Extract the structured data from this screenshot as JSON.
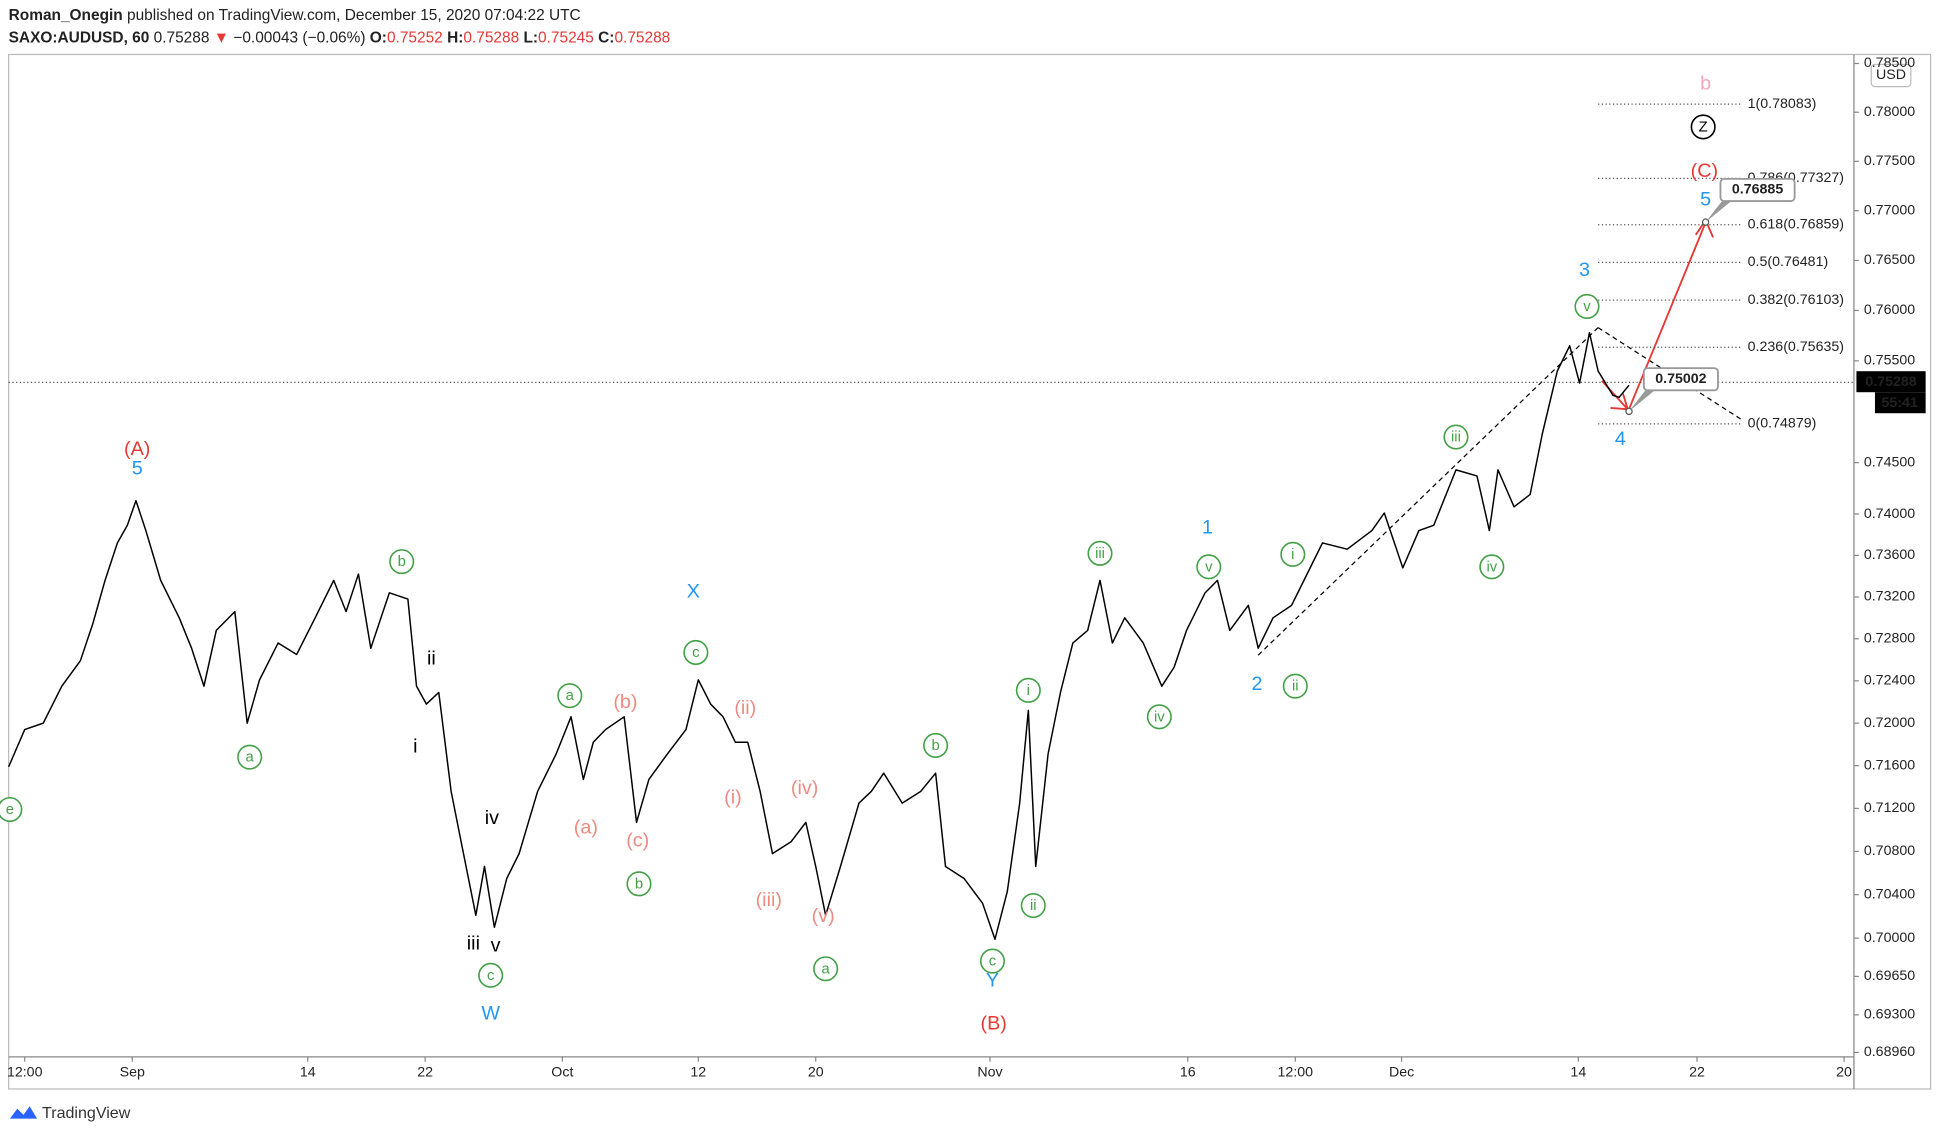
{
  "header": {
    "author": "Roman_Onegin",
    "published": "published on TradingView.com, December 15, 2020 07:04:22 UTC",
    "symbol": "SAXO:AUDUSD, 60",
    "last": "0.75288",
    "arrow": "▼",
    "change": "−0.00043 (−0.06%)",
    "ohlc": [
      {
        "key": "O:",
        "value": "0.75252"
      },
      {
        "key": "H:",
        "value": "0.75288"
      },
      {
        "key": "L:",
        "value": "0.75245"
      },
      {
        "key": "C:",
        "value": "0.75288"
      }
    ]
  },
  "footer": "TradingView",
  "chart_data": {
    "type": "line",
    "color": "#000000",
    "log_scale": true,
    "grid": false,
    "currency": "USD",
    "last_price": 0.75288,
    "countdown": "55:41",
    "xlim": [
      7,
      1500
    ],
    "xticks": [
      {
        "value": 20,
        "label": "12:00"
      },
      {
        "value": 107,
        "label": "Sep"
      },
      {
        "value": 249,
        "label": "14"
      },
      {
        "value": 344,
        "label": "22"
      },
      {
        "value": 455,
        "label": "Oct"
      },
      {
        "value": 565,
        "label": "12"
      },
      {
        "value": 660,
        "label": "20"
      },
      {
        "value": 801,
        "label": "Nov"
      },
      {
        "value": 961,
        "label": "16"
      },
      {
        "value": 1048,
        "label": "12:00"
      },
      {
        "value": 1134,
        "label": "Dec"
      },
      {
        "value": 1277,
        "label": "14"
      },
      {
        "value": 1373,
        "label": "22"
      },
      {
        "value": 1492,
        "label": "20"
      }
    ],
    "ylim": [
      0.6892,
      0.7858
    ],
    "yticks": [
      {
        "value": 0.785,
        "label": "0.78500"
      },
      {
        "value": 0.78,
        "label": "0.78000"
      },
      {
        "value": 0.775,
        "label": "0.77500"
      },
      {
        "value": 0.77,
        "label": "0.77000"
      },
      {
        "value": 0.765,
        "label": "0.76500"
      },
      {
        "value": 0.76,
        "label": "0.76000"
      },
      {
        "value": 0.755,
        "label": "0.75500"
      },
      {
        "value": 0.745,
        "label": "0.74500"
      },
      {
        "value": 0.74,
        "label": "0.74000"
      },
      {
        "value": 0.736,
        "label": "0.73600"
      },
      {
        "value": 0.732,
        "label": "0.73200"
      },
      {
        "value": 0.728,
        "label": "0.72800"
      },
      {
        "value": 0.724,
        "label": "0.72400"
      },
      {
        "value": 0.72,
        "label": "0.72000"
      },
      {
        "value": 0.716,
        "label": "0.71600"
      },
      {
        "value": 0.712,
        "label": "0.71200"
      },
      {
        "value": 0.708,
        "label": "0.70800"
      },
      {
        "value": 0.704,
        "label": "0.70400"
      },
      {
        "value": 0.7,
        "label": "0.70000"
      },
      {
        "value": 0.6965,
        "label": "0.69650"
      },
      {
        "value": 0.693,
        "label": "0.69300"
      },
      {
        "value": 0.6896,
        "label": "0.68960"
      }
    ],
    "x": [
      7,
      20,
      35,
      50,
      65,
      75,
      85,
      95,
      103,
      110,
      118,
      130,
      145,
      155,
      165,
      175,
      190,
      200,
      210,
      225,
      240,
      255,
      270,
      280,
      290,
      300,
      315,
      330,
      337,
      345,
      355,
      365,
      375,
      385,
      392,
      400,
      410,
      420,
      435,
      450,
      462,
      472,
      480,
      490,
      505,
      515,
      525,
      540,
      555,
      565,
      575,
      585,
      595,
      605,
      615,
      625,
      640,
      652,
      660,
      668,
      680,
      695,
      705,
      715,
      730,
      745,
      757,
      765,
      780,
      795,
      805,
      815,
      825,
      832,
      838,
      848,
      858,
      868,
      880,
      890,
      900,
      910,
      925,
      940,
      950,
      960,
      975,
      985,
      995,
      1010,
      1018,
      1030,
      1045,
      1060,
      1070,
      1090,
      1110,
      1120,
      1135,
      1148,
      1160,
      1178,
      1195,
      1205,
      1212,
      1225,
      1238,
      1248,
      1260,
      1270,
      1278,
      1286,
      1293,
      1305,
      1310,
      1318
    ],
    "values": [
      0.7159,
      0.7194,
      0.72,
      0.7235,
      0.7259,
      0.7294,
      0.7336,
      0.7372,
      0.7389,
      0.7413,
      0.7384,
      0.7336,
      0.73,
      0.7271,
      0.7235,
      0.7288,
      0.7306,
      0.72,
      0.7241,
      0.7276,
      0.7265,
      0.73,
      0.7336,
      0.7306,
      0.7342,
      0.7271,
      0.7324,
      0.7318,
      0.7235,
      0.7218,
      0.7229,
      0.7136,
      0.7078,
      0.7021,
      0.7066,
      0.701,
      0.7055,
      0.7078,
      0.7136,
      0.7171,
      0.7206,
      0.7147,
      0.7182,
      0.7194,
      0.7206,
      0.7107,
      0.7147,
      0.7171,
      0.7194,
      0.7241,
      0.7218,
      0.7206,
      0.7182,
      0.7182,
      0.7136,
      0.7078,
      0.7089,
      0.7107,
      0.7066,
      0.7021,
      0.7066,
      0.7125,
      0.7136,
      0.7153,
      0.7125,
      0.7136,
      0.7153,
      0.7066,
      0.7055,
      0.7032,
      0.6999,
      0.7043,
      0.7125,
      0.7212,
      0.7066,
      0.7171,
      0.7229,
      0.7276,
      0.7288,
      0.7336,
      0.7276,
      0.73,
      0.7276,
      0.7235,
      0.7253,
      0.7288,
      0.7324,
      0.7336,
      0.7288,
      0.7312,
      0.7271,
      0.73,
      0.7312,
      0.7348,
      0.7372,
      0.7366,
      0.7384,
      0.7401,
      0.7348,
      0.7384,
      0.7389,
      0.7443,
      0.7437,
      0.7384,
      0.7443,
      0.7407,
      0.7419,
      0.7479,
      0.754,
      0.7565,
      0.7528,
      0.7578,
      0.754,
      0.7516,
      0.7514,
      0.7526
    ],
    "fib_levels": [
      {
        "value": 0.78083,
        "label": "1(0.78083)"
      },
      {
        "value": 0.77327,
        "label": "0.786(0.77327)"
      },
      {
        "value": 0.76859,
        "label": "0.618(0.76859)"
      },
      {
        "value": 0.76481,
        "label": "0.5(0.76481)"
      },
      {
        "value": 0.76103,
        "label": "0.382(0.76103)"
      },
      {
        "value": 0.75635,
        "label": "0.236(0.75635)"
      },
      {
        "value": 0.74879,
        "label": "0(0.74879)"
      }
    ],
    "projections": [
      {
        "x": 1318,
        "value": 0.75002
      },
      {
        "x": 1380,
        "value": 0.76885
      }
    ],
    "annotations": [
      {
        "text": "(A)",
        "x": 111,
        "y": 0.7463,
        "color": "#e53935",
        "circled": false
      },
      {
        "text": "(B)",
        "x": 804,
        "y": 0.6922,
        "color": "#e53935",
        "circled": false
      },
      {
        "text": "(C)",
        "x": 1379,
        "y": 0.774,
        "color": "#e53935",
        "circled": false
      },
      {
        "text": "b",
        "x": 1380,
        "y": 0.7829,
        "color": "#f4a7b9",
        "circled": false
      },
      {
        "text": "Z",
        "x": 1378,
        "y": 0.7785,
        "color": "#000000",
        "circled": true
      },
      {
        "text": "5",
        "x": 111,
        "y": 0.7444,
        "color": "#2196f3",
        "circled": false
      },
      {
        "text": "W",
        "x": 397,
        "y": 0.6931,
        "color": "#2196f3",
        "circled": false
      },
      {
        "text": "X",
        "x": 561,
        "y": 0.7325,
        "color": "#2196f3",
        "circled": false
      },
      {
        "text": "Y",
        "x": 803,
        "y": 0.6961,
        "color": "#2196f3",
        "circled": false
      },
      {
        "text": "1",
        "x": 977,
        "y": 0.7387,
        "color": "#2196f3",
        "circled": false
      },
      {
        "text": "2",
        "x": 1017,
        "y": 0.7237,
        "color": "#2196f3",
        "circled": false
      },
      {
        "text": "3",
        "x": 1282,
        "y": 0.764,
        "color": "#2196f3",
        "circled": false
      },
      {
        "text": "4",
        "x": 1311,
        "y": 0.7473,
        "color": "#2196f3",
        "circled": false
      },
      {
        "text": "5",
        "x": 1380,
        "y": 0.7711,
        "color": "#2196f3",
        "circled": false
      },
      {
        "text": "e",
        "x": 8,
        "y": 0.7119,
        "color": "#43a047",
        "circled": true
      },
      {
        "text": "a",
        "x": 202,
        "y": 0.7168,
        "color": "#43a047",
        "circled": true
      },
      {
        "text": "b",
        "x": 325,
        "y": 0.7354,
        "color": "#43a047",
        "circled": true
      },
      {
        "text": "c",
        "x": 397,
        "y": 0.6966,
        "color": "#43a047",
        "circled": true
      },
      {
        "text": "a",
        "x": 461,
        "y": 0.7226,
        "color": "#43a047",
        "circled": true
      },
      {
        "text": "b",
        "x": 517,
        "y": 0.705,
        "color": "#43a047",
        "circled": true
      },
      {
        "text": "c",
        "x": 563,
        "y": 0.7267,
        "color": "#43a047",
        "circled": true
      },
      {
        "text": "a",
        "x": 668,
        "y": 0.6972,
        "color": "#43a047",
        "circled": true
      },
      {
        "text": "b",
        "x": 757,
        "y": 0.7179,
        "color": "#43a047",
        "circled": true
      },
      {
        "text": "c",
        "x": 803,
        "y": 0.6979,
        "color": "#43a047",
        "circled": true
      },
      {
        "text": "i",
        "x": 832,
        "y": 0.7231,
        "color": "#43a047",
        "circled": true
      },
      {
        "text": "ii",
        "x": 836,
        "y": 0.703,
        "color": "#43a047",
        "circled": true
      },
      {
        "text": "iii",
        "x": 890,
        "y": 0.7362,
        "color": "#43a047",
        "circled": true
      },
      {
        "text": "iv",
        "x": 938,
        "y": 0.7206,
        "color": "#43a047",
        "circled": true
      },
      {
        "text": "v",
        "x": 978,
        "y": 0.7349,
        "color": "#43a047",
        "circled": true
      },
      {
        "text": "i",
        "x": 1046,
        "y": 0.7361,
        "color": "#43a047",
        "circled": true
      },
      {
        "text": "ii",
        "x": 1048,
        "y": 0.7235,
        "color": "#43a047",
        "circled": true
      },
      {
        "text": "iii",
        "x": 1178,
        "y": 0.7475,
        "color": "#43a047",
        "circled": true
      },
      {
        "text": "iv",
        "x": 1207,
        "y": 0.7349,
        "color": "#43a047",
        "circled": true
      },
      {
        "text": "v",
        "x": 1284,
        "y": 0.7604,
        "color": "#43a047",
        "circled": true
      },
      {
        "text": "ii",
        "x": 349,
        "y": 0.7261,
        "color": "#000000",
        "circled": false
      },
      {
        "text": "i",
        "x": 336,
        "y": 0.7178,
        "color": "#000000",
        "circled": false
      },
      {
        "text": "iv",
        "x": 398,
        "y": 0.7111,
        "color": "#000000",
        "circled": false
      },
      {
        "text": "iii",
        "x": 383,
        "y": 0.6995,
        "color": "#000000",
        "circled": false
      },
      {
        "text": "v",
        "x": 401,
        "y": 0.6993,
        "color": "#000000",
        "circled": false
      },
      {
        "text": "(b)",
        "x": 506,
        "y": 0.722,
        "color": "#ef8a80",
        "circled": false
      },
      {
        "text": "(a)",
        "x": 474,
        "y": 0.7102,
        "color": "#ef8a80",
        "circled": false
      },
      {
        "text": "(c)",
        "x": 516,
        "y": 0.709,
        "color": "#ef8a80",
        "circled": false
      },
      {
        "text": "(ii)",
        "x": 603,
        "y": 0.7214,
        "color": "#ef8a80",
        "circled": false
      },
      {
        "text": "(i)",
        "x": 593,
        "y": 0.713,
        "color": "#ef8a80",
        "circled": false
      },
      {
        "text": "(iv)",
        "x": 651,
        "y": 0.7139,
        "color": "#ef8a80",
        "circled": false
      },
      {
        "text": "(iii)",
        "x": 622,
        "y": 0.7035,
        "color": "#ef8a80",
        "circled": false
      },
      {
        "text": "(v)",
        "x": 666,
        "y": 0.702,
        "color": "#ef8a80",
        "circled": false
      }
    ]
  }
}
